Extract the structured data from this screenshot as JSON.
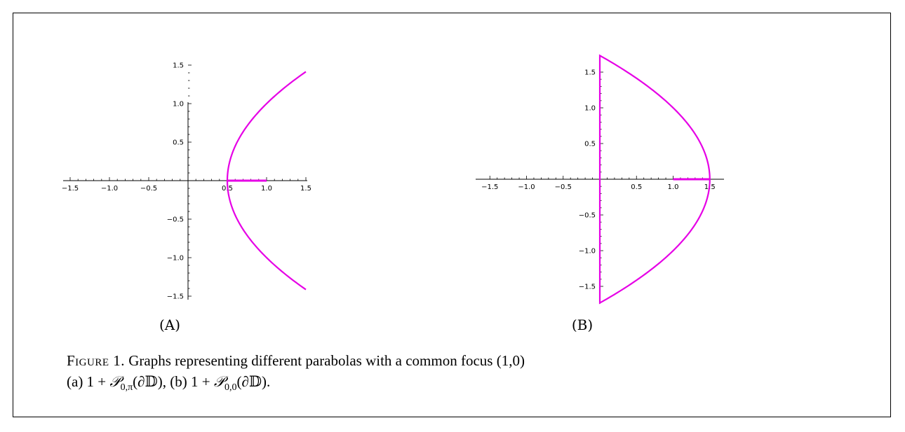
{
  "figure": {
    "label": "Figure 1.",
    "caption_text": "Graphs representing different parabolas with a common focus (1,0)",
    "caption_line2_a": "(a) 1 + ",
    "caption_math_a": "𝒫",
    "caption_sub_a": "0,π",
    "caption_arg_a": "(∂𝔻),",
    "caption_line2_b": " (b) 1 + ",
    "caption_math_b": "𝒫",
    "caption_sub_b": "0,0",
    "caption_arg_b": "(∂𝔻)."
  },
  "chart_data": [
    {
      "type": "line",
      "subfigure_label": "(A)",
      "xlim": [
        -1.5,
        1.5
      ],
      "ylim": [
        -1.5,
        1.5
      ],
      "xticks": [
        "-1.5",
        "-1.0",
        "-0.5",
        "0.5",
        "1.0",
        "1.5"
      ],
      "yticks": [
        "1.5",
        "1.0",
        "0.5",
        "-0.5",
        "-1.0",
        "-1.5"
      ],
      "series": [
        {
          "kind": "parabola",
          "vertex": [
            0.5,
            0
          ],
          "opens": "right",
          "points": [
            [
              1.5,
              1.414
            ],
            [
              1.0,
              1.0
            ],
            [
              0.75,
              0.707
            ],
            [
              0.5,
              0
            ],
            [
              0.75,
              -0.707
            ],
            [
              1.0,
              -1.0
            ],
            [
              1.5,
              -1.414
            ]
          ]
        },
        {
          "kind": "segment",
          "points": [
            [
              0.5,
              0
            ],
            [
              1.0,
              0
            ]
          ]
        }
      ],
      "color": "#e600e6"
    },
    {
      "type": "line",
      "subfigure_label": "(B)",
      "xlim": [
        -1.7,
        1.7
      ],
      "ylim": [
        -1.7,
        1.7
      ],
      "xticks": [
        "-1.5",
        "-1.0",
        "-0.5",
        "0.5",
        "1.0",
        "1.5"
      ],
      "yticks": [
        "1.5",
        "1.0",
        "0.5",
        "-0.5",
        "-1.0",
        "-1.5"
      ],
      "series": [
        {
          "kind": "parabola",
          "vertex": [
            1.5,
            0
          ],
          "opens": "left",
          "points": [
            [
              0,
              1.732
            ],
            [
              0.5,
              1.414
            ],
            [
              1.0,
              1.0
            ],
            [
              1.5,
              0
            ],
            [
              1.0,
              -1.0
            ],
            [
              0.5,
              -1.414
            ],
            [
              0,
              -1.732
            ]
          ]
        },
        {
          "kind": "segment",
          "points": [
            [
              1.0,
              0
            ],
            [
              1.5,
              0
            ]
          ]
        }
      ],
      "color": "#e600e6"
    }
  ]
}
